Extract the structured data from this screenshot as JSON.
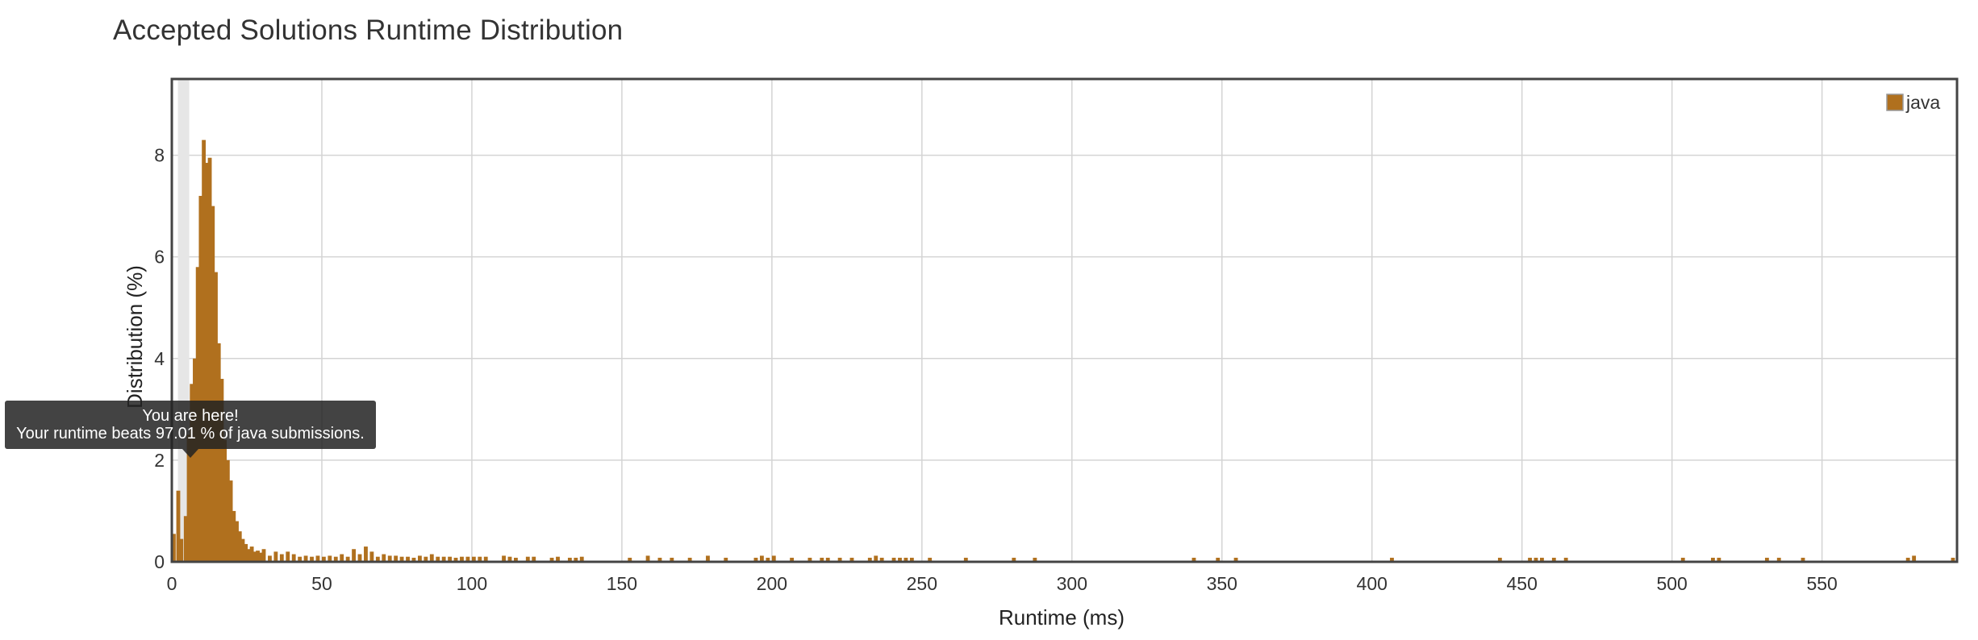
{
  "page": {
    "title": "Accepted Solutions Runtime Distribution"
  },
  "tooltip": {
    "line1": "You are here!",
    "line2": "Your runtime beats 97.01 % of java submissions."
  },
  "colors": {
    "bar": "#b0701e",
    "bar_stroke": "#8a5412",
    "grid": "#d4d4d4",
    "axis_border": "#444444",
    "highlight_band": "#e6e6e6"
  },
  "chart_data": {
    "type": "bar",
    "title": "Accepted Solutions Runtime Distribution",
    "xlabel": "Runtime (ms)",
    "ylabel": "Distribution (%)",
    "xlim": [
      0,
      595
    ],
    "ylim": [
      0,
      9.5
    ],
    "xticks": [
      0,
      50,
      100,
      150,
      200,
      250,
      300,
      350,
      400,
      450,
      500,
      550
    ],
    "yticks": [
      0,
      2,
      4,
      6,
      8
    ],
    "grid": true,
    "legend_position": "top-right",
    "highlight_runtime": 5,
    "series": [
      {
        "name": "java",
        "color": "#b0701e",
        "bin_width": 1.3,
        "x": [
          0,
          1.5,
          2.5,
          4,
          5,
          6,
          7,
          8,
          9,
          10,
          11,
          12,
          13,
          14,
          15,
          16,
          17,
          18,
          19,
          20,
          21,
          22,
          23,
          24,
          25,
          26,
          27,
          28,
          29,
          30,
          32,
          34,
          36,
          38,
          40,
          42,
          44,
          46,
          48,
          50,
          52,
          54,
          56,
          58,
          60,
          62,
          64,
          66,
          68,
          70,
          72,
          74,
          76,
          78,
          80,
          82,
          84,
          86,
          88,
          90,
          92,
          94,
          96,
          98,
          100,
          102,
          104,
          110,
          112,
          114,
          118,
          120,
          126,
          128,
          132,
          134,
          136,
          152,
          158,
          162,
          166,
          172,
          178,
          184,
          194,
          196,
          198,
          200,
          206,
          212,
          216,
          218,
          222,
          226,
          232,
          234,
          236,
          240,
          242,
          244,
          246,
          252,
          264,
          280,
          287,
          340,
          348,
          354,
          406,
          442,
          452,
          454,
          456,
          460,
          464,
          503,
          513,
          515,
          531,
          535,
          543,
          578,
          580,
          593
        ],
        "values": [
          0.55,
          1.4,
          0.45,
          0.9,
          2.5,
          3.5,
          4.0,
          5.8,
          7.2,
          8.3,
          7.85,
          7.95,
          7.0,
          5.7,
          4.3,
          3.6,
          2.4,
          2.0,
          1.6,
          1.0,
          0.8,
          0.6,
          0.45,
          0.35,
          0.25,
          0.3,
          0.2,
          0.22,
          0.18,
          0.25,
          0.12,
          0.2,
          0.15,
          0.2,
          0.15,
          0.1,
          0.12,
          0.1,
          0.12,
          0.1,
          0.12,
          0.1,
          0.15,
          0.1,
          0.25,
          0.15,
          0.3,
          0.2,
          0.1,
          0.15,
          0.12,
          0.12,
          0.1,
          0.1,
          0.08,
          0.12,
          0.1,
          0.15,
          0.1,
          0.1,
          0.1,
          0.08,
          0.1,
          0.1,
          0.1,
          0.1,
          0.1,
          0.12,
          0.1,
          0.08,
          0.1,
          0.1,
          0.08,
          0.1,
          0.08,
          0.08,
          0.1,
          0.08,
          0.12,
          0.08,
          0.08,
          0.08,
          0.12,
          0.08,
          0.08,
          0.12,
          0.08,
          0.12,
          0.08,
          0.08,
          0.08,
          0.08,
          0.08,
          0.08,
          0.08,
          0.12,
          0.08,
          0.08,
          0.08,
          0.08,
          0.08,
          0.08,
          0.08,
          0.08,
          0.08,
          0.08,
          0.08,
          0.08,
          0.08,
          0.08,
          0.08,
          0.08,
          0.08,
          0.08,
          0.08,
          0.08,
          0.08,
          0.08,
          0.08,
          0.08,
          0.08,
          0.08,
          0.12,
          0.08
        ]
      }
    ]
  }
}
